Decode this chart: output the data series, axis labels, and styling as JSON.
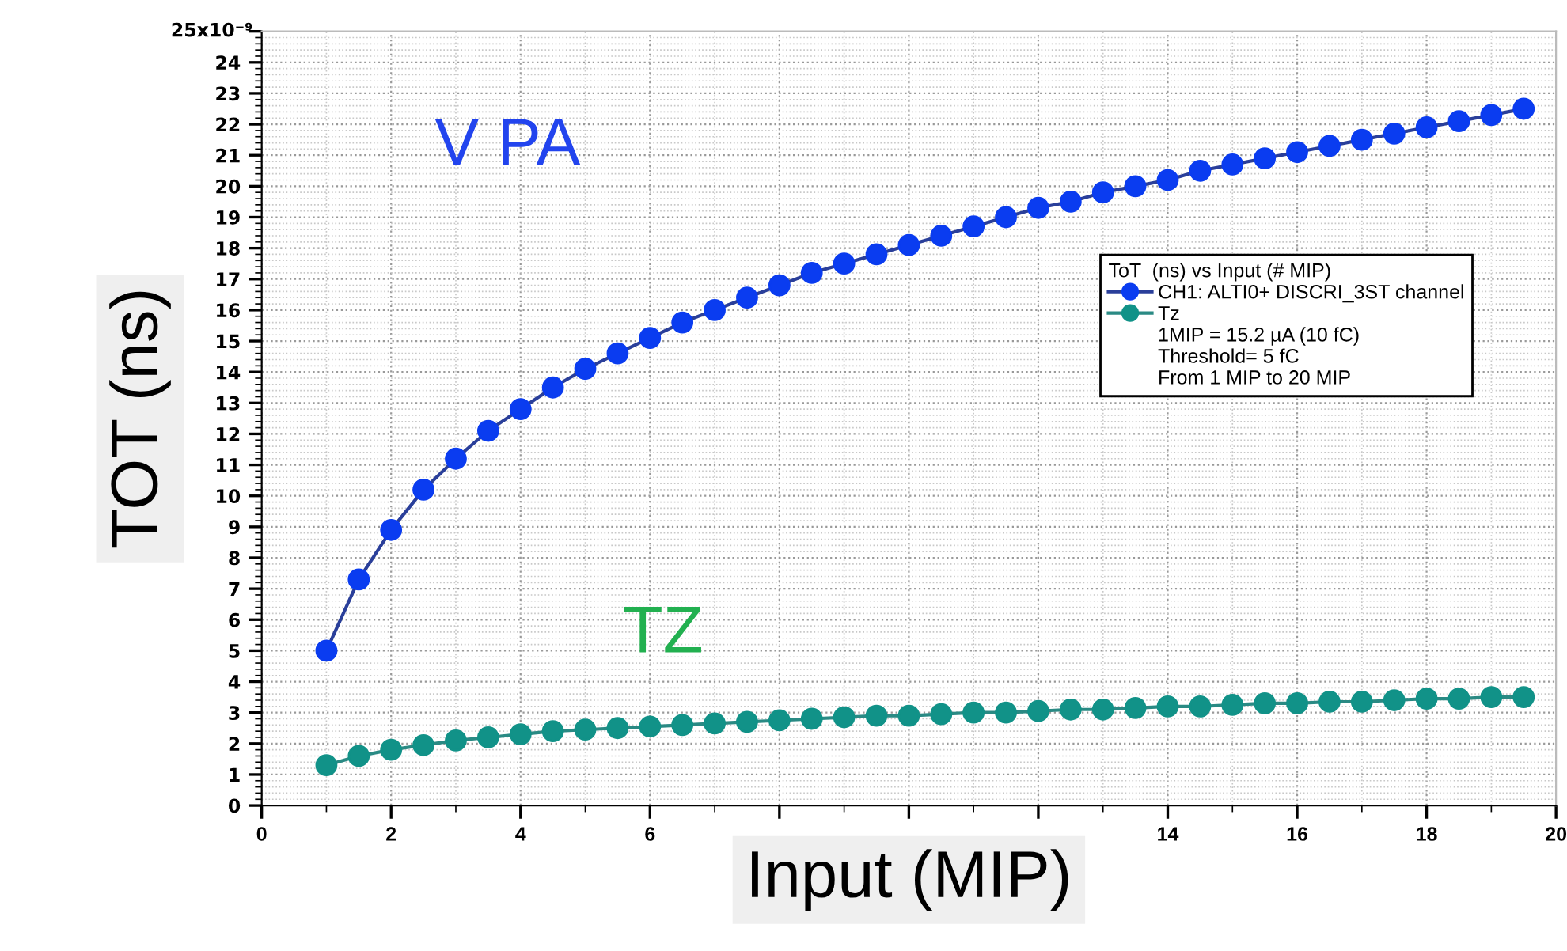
{
  "chart_data": {
    "type": "line",
    "xlabel": "Input (MIP)",
    "ylabel": "TOT (ns)",
    "legend_title": "ToT  (ns) vs Input (# MIP)",
    "x": [
      1,
      1.5,
      2,
      2.5,
      3,
      3.5,
      4,
      4.5,
      5,
      5.5,
      6,
      6.5,
      7,
      7.5,
      8,
      8.5,
      9,
      9.5,
      10,
      10.5,
      11,
      11.5,
      12,
      12.5,
      13,
      13.5,
      14,
      14.5,
      15,
      15.5,
      16,
      16.5,
      17,
      17.5,
      18,
      18.5,
      19,
      19.5
    ],
    "series": [
      {
        "name": "CH1: ALTI0+ DISCRI_3ST channel",
        "color": "#0a3cf0",
        "values": [
          5.0,
          7.3,
          8.9,
          10.2,
          11.2,
          12.1,
          12.8,
          13.5,
          14.1,
          14.6,
          15.1,
          15.6,
          16.0,
          16.4,
          16.8,
          17.2,
          17.5,
          17.8,
          18.1,
          18.4,
          18.7,
          19.0,
          19.3,
          19.5,
          19.8,
          20.0,
          20.2,
          20.5,
          20.7,
          20.9,
          21.1,
          21.3,
          21.5,
          21.7,
          21.9,
          22.1,
          22.3,
          22.5
        ]
      },
      {
        "name": "Tz",
        "color": "#119288",
        "values": [
          1.3,
          1.6,
          1.8,
          1.95,
          2.1,
          2.2,
          2.3,
          2.4,
          2.45,
          2.5,
          2.55,
          2.6,
          2.65,
          2.7,
          2.75,
          2.8,
          2.85,
          2.9,
          2.9,
          2.95,
          3.0,
          3.0,
          3.05,
          3.1,
          3.1,
          3.15,
          3.2,
          3.2,
          3.25,
          3.3,
          3.3,
          3.35,
          3.35,
          3.4,
          3.45,
          3.45,
          3.5,
          3.5
        ]
      }
    ],
    "annotations": [
      "V PA",
      "TZ",
      "25x10⁻⁹",
      "1MIP = 15.2 µA (10 fC)",
      "Threshold= 5 fC",
      "From 1 MIP to 20 MIP"
    ],
    "xlim": [
      0,
      20
    ],
    "xticks": [
      0,
      2,
      4,
      6,
      {
        "value": 8,
        "label": null
      },
      {
        "value": 10,
        "label": null
      },
      {
        "value": 12,
        "label": null
      },
      14,
      16,
      18,
      20
    ],
    "ylim": [
      0,
      25
    ],
    "yticks": [
      0,
      1,
      2,
      3,
      4,
      5,
      6,
      7,
      8,
      9,
      10,
      11,
      12,
      13,
      14,
      15,
      16,
      17,
      18,
      19,
      20,
      21,
      22,
      23,
      24,
      {
        "value": 25,
        "label": null
      }
    ],
    "grid": true,
    "legend": "right",
    "marker": "circle",
    "line_style": "solid"
  }
}
